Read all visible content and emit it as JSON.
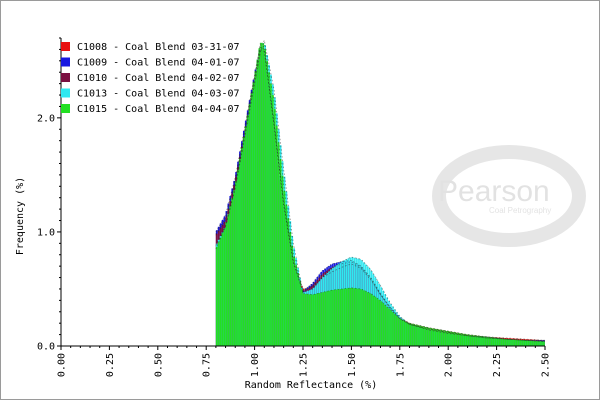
{
  "chart_data": {
    "type": "bar",
    "title": "",
    "xlabel": "Random Reflectance (%)",
    "ylabel": "Frequency (%)",
    "xlim": [
      0.0,
      2.5
    ],
    "ylim": [
      0.0,
      2.7
    ],
    "x_ticks": [
      "0.00",
      "0.25",
      "0.50",
      "0.75",
      "1.00",
      "1.25",
      "1.50",
      "1.75",
      "2.00",
      "2.25",
      "2.50"
    ],
    "y_ticks": [
      "0.0",
      "1.0",
      "2.0"
    ],
    "grid": false,
    "legend_position": "top-left",
    "bin_width": 0.01,
    "series": [
      {
        "name": "C1008 - Coal Blend 03-31-07",
        "color": "#e81010",
        "x": [
          0.8,
          0.85,
          0.9,
          0.95,
          1.0,
          1.03,
          1.05,
          1.1,
          1.15,
          1.2,
          1.25,
          1.3,
          1.35,
          1.4,
          1.45,
          1.5,
          1.55,
          1.6,
          1.65,
          1.7,
          1.75,
          1.8,
          1.9,
          2.0,
          2.1,
          2.2,
          2.3,
          2.4,
          2.5
        ],
        "y": [
          0.98,
          1.12,
          1.45,
          1.9,
          2.35,
          2.62,
          2.6,
          1.95,
          1.25,
          0.74,
          0.5,
          0.52,
          0.6,
          0.65,
          0.69,
          0.72,
          0.68,
          0.58,
          0.45,
          0.34,
          0.25,
          0.2,
          0.16,
          0.13,
          0.1,
          0.08,
          0.07,
          0.06,
          0.05
        ]
      },
      {
        "name": "C1009 - Coal Blend 04-01-07",
        "color": "#1818e0",
        "x": [
          0.8,
          0.85,
          0.9,
          0.95,
          1.0,
          1.03,
          1.05,
          1.1,
          1.15,
          1.2,
          1.25,
          1.3,
          1.35,
          1.4,
          1.45,
          1.5,
          1.55,
          1.6,
          1.65,
          1.7,
          1.75,
          1.8,
          1.9,
          2.0,
          2.1,
          2.2,
          2.3,
          2.4,
          2.5
        ],
        "y": [
          1.0,
          1.15,
          1.48,
          1.93,
          2.38,
          2.64,
          2.62,
          1.98,
          1.28,
          0.76,
          0.48,
          0.55,
          0.66,
          0.72,
          0.74,
          0.75,
          0.7,
          0.6,
          0.46,
          0.34,
          0.24,
          0.19,
          0.15,
          0.12,
          0.09,
          0.08,
          0.06,
          0.05,
          0.05
        ]
      },
      {
        "name": "C1010 - Coal Blend 04-02-07",
        "color": "#7a1040",
        "x": [
          0.8,
          0.85,
          0.9,
          0.95,
          1.0,
          1.03,
          1.05,
          1.1,
          1.15,
          1.2,
          1.25,
          1.3,
          1.35,
          1.4,
          1.45,
          1.5,
          1.55,
          1.6,
          1.65,
          1.7,
          1.75,
          1.8,
          1.9,
          2.0,
          2.1,
          2.2,
          2.3,
          2.4,
          2.5
        ],
        "y": [
          0.97,
          1.1,
          1.44,
          1.88,
          2.34,
          2.6,
          2.58,
          1.94,
          1.24,
          0.73,
          0.47,
          0.53,
          0.63,
          0.69,
          0.72,
          0.74,
          0.69,
          0.59,
          0.45,
          0.33,
          0.24,
          0.19,
          0.15,
          0.12,
          0.09,
          0.07,
          0.06,
          0.05,
          0.04
        ]
      },
      {
        "name": "C1013 - Coal Blend 04-03-07",
        "color": "#30e8f0",
        "x": [
          0.8,
          0.85,
          0.9,
          0.95,
          1.0,
          1.03,
          1.05,
          1.1,
          1.15,
          1.2,
          1.25,
          1.3,
          1.35,
          1.4,
          1.45,
          1.5,
          1.55,
          1.6,
          1.65,
          1.7,
          1.75,
          1.8,
          1.9,
          2.0,
          2.1,
          2.2,
          2.3,
          2.4,
          2.5
        ],
        "y": [
          0.88,
          1.05,
          1.38,
          1.84,
          2.3,
          2.58,
          2.68,
          2.25,
          1.55,
          0.9,
          0.47,
          0.5,
          0.6,
          0.68,
          0.74,
          0.78,
          0.76,
          0.67,
          0.53,
          0.38,
          0.26,
          0.19,
          0.14,
          0.11,
          0.09,
          0.07,
          0.06,
          0.05,
          0.04
        ]
      },
      {
        "name": "C1015 - Coal Blend 04-04-07",
        "color": "#22e022",
        "x": [
          0.8,
          0.85,
          0.9,
          0.95,
          1.0,
          1.03,
          1.05,
          1.1,
          1.15,
          1.2,
          1.25,
          1.3,
          1.35,
          1.4,
          1.45,
          1.5,
          1.55,
          1.6,
          1.65,
          1.7,
          1.75,
          1.8,
          1.9,
          2.0,
          2.1,
          2.2,
          2.3,
          2.4,
          2.5
        ],
        "y": [
          0.85,
          1.05,
          1.4,
          1.88,
          2.36,
          2.66,
          2.65,
          2.15,
          1.42,
          0.82,
          0.46,
          0.45,
          0.47,
          0.49,
          0.5,
          0.51,
          0.5,
          0.46,
          0.4,
          0.32,
          0.24,
          0.2,
          0.16,
          0.13,
          0.1,
          0.08,
          0.06,
          0.05,
          0.04
        ]
      }
    ]
  },
  "watermark": {
    "text": "Pearson",
    "subtext": "Coal Petrography"
  }
}
